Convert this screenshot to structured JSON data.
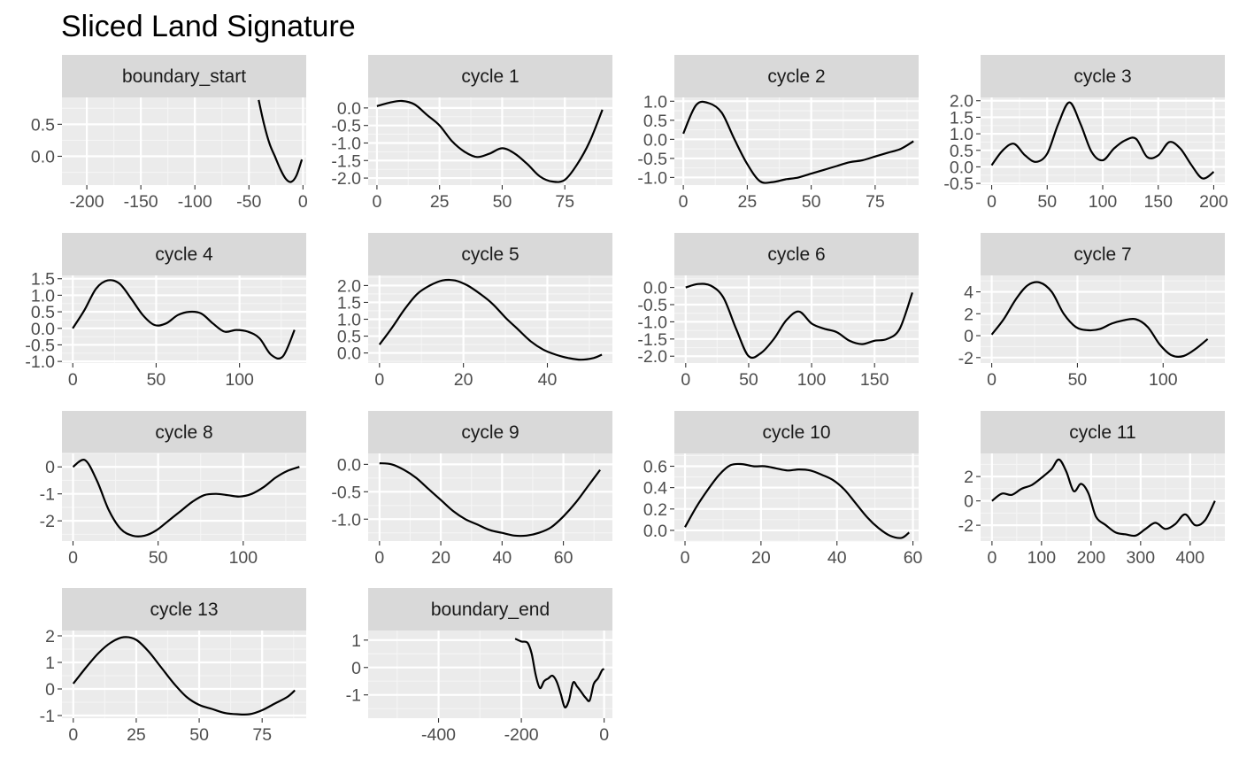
{
  "chart_data": {
    "type": "line",
    "title": "Sliced Land Signature",
    "colors": {
      "panel_background": "#ebebeb",
      "strip_background": "#d9d9d9",
      "grid_major": "#ffffff",
      "grid_minor": "#f5f5f5",
      "line": "#000000",
      "tick_text": "#4d4d4d"
    },
    "grid": true,
    "facets": [
      {
        "label": "boundary_start",
        "xlim": [
          -223,
          3
        ],
        "ylim": [
          -0.45,
          0.92
        ],
        "xticks": [
          -200,
          -150,
          -100,
          -50,
          0
        ],
        "yticks": [
          0.5,
          0.0
        ],
        "xtick_labels": [
          "-200",
          "-150",
          "-100",
          "-50",
          "0"
        ],
        "ytick_labels": [
          "0.5",
          "0.0"
        ],
        "x": [
          -41,
          -36,
          -31,
          -26,
          -21,
          -16,
          -11,
          -6,
          -1
        ],
        "y": [
          0.88,
          0.5,
          0.2,
          0.0,
          -0.2,
          -0.35,
          -0.4,
          -0.3,
          -0.05
        ]
      },
      {
        "label": "cycle 1",
        "xlim": [
          -3.5,
          94
        ],
        "ylim": [
          -2.2,
          0.3
        ],
        "xticks": [
          0,
          25,
          50,
          75
        ],
        "yticks": [
          0.0,
          -0.5,
          -1.0,
          -1.5,
          -2.0
        ],
        "xtick_labels": [
          "0",
          "25",
          "50",
          "75"
        ],
        "ytick_labels": [
          "0.0",
          "-0.5",
          "-1.0",
          "-1.5",
          "-2.0"
        ],
        "x": [
          0,
          5,
          10,
          15,
          20,
          25,
          30,
          35,
          40,
          45,
          50,
          55,
          60,
          65,
          70,
          75,
          80,
          85,
          90
        ],
        "y": [
          0.05,
          0.15,
          0.2,
          0.1,
          -0.2,
          -0.5,
          -0.95,
          -1.25,
          -1.4,
          -1.3,
          -1.15,
          -1.3,
          -1.6,
          -1.95,
          -2.1,
          -2.05,
          -1.6,
          -0.95,
          -0.05
        ]
      },
      {
        "label": "cycle 2",
        "xlim": [
          -3.5,
          92
        ],
        "ylim": [
          -1.2,
          1.1
        ],
        "xticks": [
          0,
          25,
          50,
          75
        ],
        "yticks": [
          1.0,
          0.5,
          0.0,
          -0.5,
          -1.0
        ],
        "xtick_labels": [
          "0",
          "25",
          "50",
          "75"
        ],
        "ytick_labels": [
          "1.0",
          "0.5",
          "0.0",
          "-0.5",
          "-1.0"
        ],
        "x": [
          0,
          5,
          10,
          15,
          20,
          25,
          30,
          35,
          40,
          45,
          50,
          55,
          60,
          65,
          70,
          75,
          80,
          85,
          90
        ],
        "y": [
          0.15,
          0.9,
          0.95,
          0.7,
          0.0,
          -0.65,
          -1.1,
          -1.12,
          -1.05,
          -1.0,
          -0.9,
          -0.8,
          -0.7,
          -0.6,
          -0.55,
          -0.45,
          -0.35,
          -0.25,
          -0.05
        ]
      },
      {
        "label": "cycle 3",
        "xlim": [
          -10,
          210
        ],
        "ylim": [
          -0.55,
          2.1
        ],
        "xticks": [
          0,
          50,
          100,
          150,
          200
        ],
        "yticks": [
          2.0,
          1.5,
          1.0,
          0.5,
          0.0,
          -0.5
        ],
        "xtick_labels": [
          "0",
          "50",
          "100",
          "150",
          "200"
        ],
        "ytick_labels": [
          "2.0",
          "1.5",
          "1.0",
          "0.5",
          "0.0",
          "-0.5"
        ],
        "x": [
          0,
          10,
          20,
          30,
          40,
          50,
          60,
          70,
          80,
          90,
          100,
          110,
          120,
          130,
          140,
          150,
          160,
          170,
          180,
          190,
          200
        ],
        "y": [
          0.05,
          0.5,
          0.7,
          0.35,
          0.15,
          0.4,
          1.3,
          1.95,
          1.3,
          0.45,
          0.2,
          0.55,
          0.8,
          0.85,
          0.3,
          0.35,
          0.75,
          0.55,
          0.05,
          -0.35,
          -0.15
        ]
      },
      {
        "label": "cycle 4",
        "xlim": [
          -6.5,
          140
        ],
        "ylim": [
          -1.05,
          1.6
        ],
        "xticks": [
          0,
          50,
          100
        ],
        "yticks": [
          1.5,
          1.0,
          0.5,
          0.0,
          -0.5,
          -1.0
        ],
        "xtick_labels": [
          "0",
          "50",
          "100"
        ],
        "ytick_labels": [
          "1.5",
          "1.0",
          "0.5",
          "0.0",
          "-0.5",
          "-1.0"
        ],
        "x": [
          0,
          7,
          14,
          21,
          28,
          35,
          42,
          49,
          56,
          63,
          70,
          77,
          84,
          91,
          98,
          105,
          112,
          119,
          126,
          133
        ],
        "y": [
          0.0,
          0.55,
          1.2,
          1.45,
          1.35,
          0.9,
          0.4,
          0.1,
          0.15,
          0.4,
          0.5,
          0.45,
          0.15,
          -0.1,
          -0.05,
          -0.1,
          -0.3,
          -0.8,
          -0.85,
          -0.05
        ]
      },
      {
        "label": "cycle 5",
        "xlim": [
          -2.7,
          55.5
        ],
        "ylim": [
          -0.3,
          2.3
        ],
        "xticks": [
          0,
          20,
          40
        ],
        "yticks": [
          2.0,
          1.5,
          1.0,
          0.5,
          0.0
        ],
        "xtick_labels": [
          "0",
          "20",
          "40"
        ],
        "ytick_labels": [
          "2.0",
          "1.5",
          "1.0",
          "0.5",
          "0.0"
        ],
        "x": [
          0,
          3,
          6,
          9,
          12,
          15,
          18,
          21,
          24,
          27,
          30,
          33,
          36,
          39,
          42,
          45,
          48,
          51,
          53
        ],
        "y": [
          0.25,
          0.75,
          1.3,
          1.75,
          2.0,
          2.15,
          2.15,
          2.0,
          1.75,
          1.45,
          1.05,
          0.7,
          0.35,
          0.1,
          -0.05,
          -0.15,
          -0.2,
          -0.15,
          -0.05
        ]
      },
      {
        "label": "cycle 6",
        "xlim": [
          -9,
          185
        ],
        "ylim": [
          -2.2,
          0.35
        ],
        "xticks": [
          0,
          50,
          100,
          150
        ],
        "yticks": [
          0.0,
          -0.5,
          -1.0,
          -1.5,
          -2.0
        ],
        "xtick_labels": [
          "0",
          "50",
          "100",
          "150"
        ],
        "ytick_labels": [
          "0.0",
          "-0.5",
          "-1.0",
          "-1.5",
          "-2.0"
        ],
        "x": [
          0,
          10,
          20,
          30,
          40,
          50,
          60,
          70,
          80,
          90,
          100,
          110,
          120,
          130,
          140,
          150,
          160,
          170,
          180
        ],
        "y": [
          0.0,
          0.1,
          0.05,
          -0.3,
          -1.2,
          -2.0,
          -1.9,
          -1.5,
          -0.95,
          -0.7,
          -1.05,
          -1.2,
          -1.3,
          -1.55,
          -1.65,
          -1.55,
          -1.5,
          -1.2,
          -0.15
        ]
      },
      {
        "label": "cycle 7",
        "xlim": [
          -6.5,
          136
        ],
        "ylim": [
          -2.5,
          5.5
        ],
        "xticks": [
          0,
          50,
          100
        ],
        "yticks": [
          4,
          2,
          0,
          -2
        ],
        "xtick_labels": [
          "0",
          "50",
          "100"
        ],
        "ytick_labels": [
          "4",
          "2",
          "0",
          "-2"
        ],
        "x": [
          0,
          7,
          14,
          21,
          28,
          35,
          42,
          49,
          56,
          63,
          70,
          77,
          84,
          91,
          98,
          105,
          112,
          119,
          126
        ],
        "y": [
          0.1,
          1.5,
          3.3,
          4.6,
          4.85,
          4.0,
          2.0,
          0.8,
          0.5,
          0.6,
          1.1,
          1.4,
          1.5,
          0.8,
          -0.8,
          -1.8,
          -1.85,
          -1.2,
          -0.3
        ]
      },
      {
        "label": "cycle 8",
        "xlim": [
          -6.5,
          137
        ],
        "ylim": [
          -2.75,
          0.5
        ],
        "xticks": [
          0,
          50,
          100
        ],
        "yticks": [
          0,
          -1,
          -2
        ],
        "xtick_labels": [
          "0",
          "50",
          "100"
        ],
        "ytick_labels": [
          "0",
          "-1",
          "-2"
        ],
        "x": [
          0,
          7,
          14,
          21,
          28,
          35,
          42,
          49,
          56,
          63,
          70,
          77,
          84,
          91,
          98,
          105,
          112,
          119,
          126,
          133
        ],
        "y": [
          0.0,
          0.25,
          -0.5,
          -1.6,
          -2.3,
          -2.55,
          -2.55,
          -2.35,
          -2.0,
          -1.65,
          -1.3,
          -1.05,
          -1.0,
          -1.05,
          -1.1,
          -1.0,
          -0.75,
          -0.4,
          -0.15,
          0.0
        ]
      },
      {
        "label": "cycle 9",
        "xlim": [
          -3.7,
          76
        ],
        "ylim": [
          -1.4,
          0.2
        ],
        "xticks": [
          0,
          20,
          40,
          60
        ],
        "yticks": [
          0.0,
          -0.5,
          -1.0
        ],
        "xtick_labels": [
          "0",
          "20",
          "40",
          "60"
        ],
        "ytick_labels": [
          "0.0",
          "-0.5",
          "-1.0"
        ],
        "x": [
          0,
          4,
          8,
          12,
          16,
          20,
          24,
          28,
          32,
          36,
          40,
          44,
          48,
          52,
          56,
          60,
          64,
          68,
          72
        ],
        "y": [
          0.02,
          0.0,
          -0.1,
          -0.25,
          -0.45,
          -0.65,
          -0.85,
          -1.0,
          -1.1,
          -1.2,
          -1.25,
          -1.3,
          -1.3,
          -1.25,
          -1.15,
          -0.95,
          -0.7,
          -0.4,
          -0.1
        ]
      },
      {
        "label": "cycle 10",
        "xlim": [
          -2.8,
          61.5
        ],
        "ylim": [
          -0.1,
          0.72
        ],
        "xticks": [
          0,
          20,
          40,
          60
        ],
        "yticks": [
          0.6,
          0.4,
          0.2,
          0.0
        ],
        "xtick_labels": [
          "0",
          "20",
          "40",
          "60"
        ],
        "ytick_labels": [
          "0.6",
          "0.4",
          "0.2",
          "0.0"
        ],
        "x": [
          0,
          3,
          6,
          9,
          12,
          15,
          18,
          21,
          24,
          27,
          30,
          33,
          36,
          39,
          42,
          45,
          48,
          51,
          54,
          57,
          59
        ],
        "y": [
          0.03,
          0.22,
          0.38,
          0.52,
          0.61,
          0.62,
          0.6,
          0.6,
          0.58,
          0.56,
          0.57,
          0.56,
          0.52,
          0.47,
          0.38,
          0.25,
          0.12,
          0.02,
          -0.05,
          -0.07,
          -0.02
        ]
      },
      {
        "label": "cycle 11",
        "xlim": [
          -23,
          470
        ],
        "ylim": [
          -3.3,
          3.9
        ],
        "xticks": [
          0,
          100,
          200,
          300,
          400
        ],
        "yticks": [
          2,
          0,
          -2
        ],
        "xtick_labels": [
          "0",
          "100",
          "200",
          "300",
          "400"
        ],
        "ytick_labels": [
          "2",
          "0",
          "-2"
        ],
        "x": [
          0,
          20,
          40,
          60,
          80,
          100,
          120,
          135,
          150,
          165,
          180,
          195,
          210,
          230,
          250,
          270,
          290,
          310,
          330,
          350,
          370,
          390,
          410,
          430,
          450
        ],
        "y": [
          0.0,
          0.6,
          0.5,
          1.0,
          1.3,
          1.9,
          2.6,
          3.4,
          2.4,
          0.8,
          1.4,
          0.6,
          -1.3,
          -2.0,
          -2.6,
          -2.75,
          -2.85,
          -2.3,
          -1.8,
          -2.3,
          -1.9,
          -1.1,
          -2.0,
          -1.6,
          0.0
        ]
      },
      {
        "label": "cycle 13",
        "xlim": [
          -4.5,
          92.5
        ],
        "ylim": [
          -1.1,
          2.2
        ],
        "xticks": [
          0,
          25,
          50,
          75
        ],
        "yticks": [
          2,
          1,
          0,
          -1
        ],
        "xtick_labels": [
          "0",
          "25",
          "50",
          "75"
        ],
        "ytick_labels": [
          "2",
          "1",
          "0",
          "-1"
        ],
        "x": [
          0,
          5,
          10,
          15,
          20,
          25,
          30,
          35,
          40,
          45,
          50,
          55,
          60,
          65,
          70,
          75,
          80,
          85,
          88
        ],
        "y": [
          0.2,
          0.8,
          1.35,
          1.75,
          1.95,
          1.85,
          1.4,
          0.8,
          0.2,
          -0.3,
          -0.6,
          -0.75,
          -0.9,
          -0.95,
          -0.95,
          -0.8,
          -0.55,
          -0.3,
          -0.05
        ]
      },
      {
        "label": "boundary_end",
        "xlim": [
          -570,
          20
        ],
        "ylim": [
          -1.85,
          1.35
        ],
        "xticks": [
          -400,
          -200,
          0
        ],
        "yticks": [
          1,
          0,
          -1
        ],
        "xtick_labels": [
          "-400",
          "-200",
          "0"
        ],
        "ytick_labels": [
          "1",
          "0",
          "-1"
        ],
        "x": [
          -215,
          -200,
          -185,
          -175,
          -165,
          -155,
          -145,
          -135,
          -125,
          -115,
          -105,
          -95,
          -85,
          -75,
          -65,
          -55,
          -45,
          -35,
          -25,
          -15,
          -5,
          0
        ],
        "y": [
          1.05,
          0.95,
          0.9,
          0.5,
          -0.3,
          -0.75,
          -0.5,
          -0.4,
          -0.3,
          -0.5,
          -0.95,
          -1.45,
          -1.2,
          -0.55,
          -0.7,
          -0.9,
          -1.1,
          -1.2,
          -0.6,
          -0.4,
          -0.1,
          -0.05
        ]
      }
    ]
  }
}
